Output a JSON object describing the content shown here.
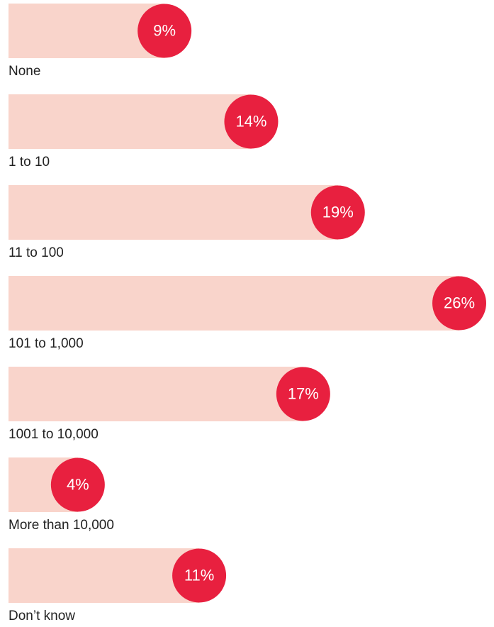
{
  "chart_data": {
    "type": "bar",
    "orientation": "horizontal",
    "categories": [
      "None",
      "1 to 10",
      "11 to 100",
      "101 to 1,000",
      "1001 to 10,000",
      "More than 10,000",
      "Don’t know"
    ],
    "values": [
      9,
      14,
      19,
      26,
      17,
      4,
      11
    ],
    "value_labels": [
      "9%",
      "14%",
      "19%",
      "26%",
      "17%",
      "4%",
      "11%"
    ],
    "color": "#f9d4cb",
    "label_color": "#e8203f"
  }
}
